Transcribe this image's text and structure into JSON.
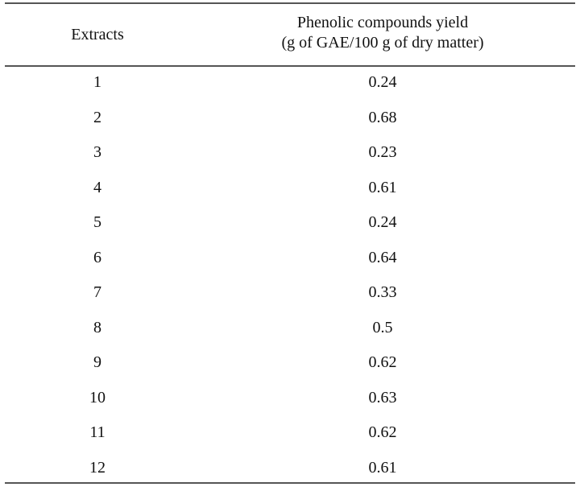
{
  "table": {
    "headers": {
      "col1": "Extracts",
      "col2_line1": "Phenolic compounds yield",
      "col2_line2": "(g of GAE/100 g of dry matter)"
    },
    "rows": [
      {
        "extract": "1",
        "yield": "0.24"
      },
      {
        "extract": "2",
        "yield": "0.68"
      },
      {
        "extract": "3",
        "yield": "0.23"
      },
      {
        "extract": "4",
        "yield": "0.61"
      },
      {
        "extract": "5",
        "yield": "0.24"
      },
      {
        "extract": "6",
        "yield": "0.64"
      },
      {
        "extract": "7",
        "yield": "0.33"
      },
      {
        "extract": "8",
        "yield": "0.5"
      },
      {
        "extract": "9",
        "yield": "0.62"
      },
      {
        "extract": "10",
        "yield": "0.63"
      },
      {
        "extract": "11",
        "yield": "0.62"
      },
      {
        "extract": "12",
        "yield": "0.61"
      }
    ]
  }
}
